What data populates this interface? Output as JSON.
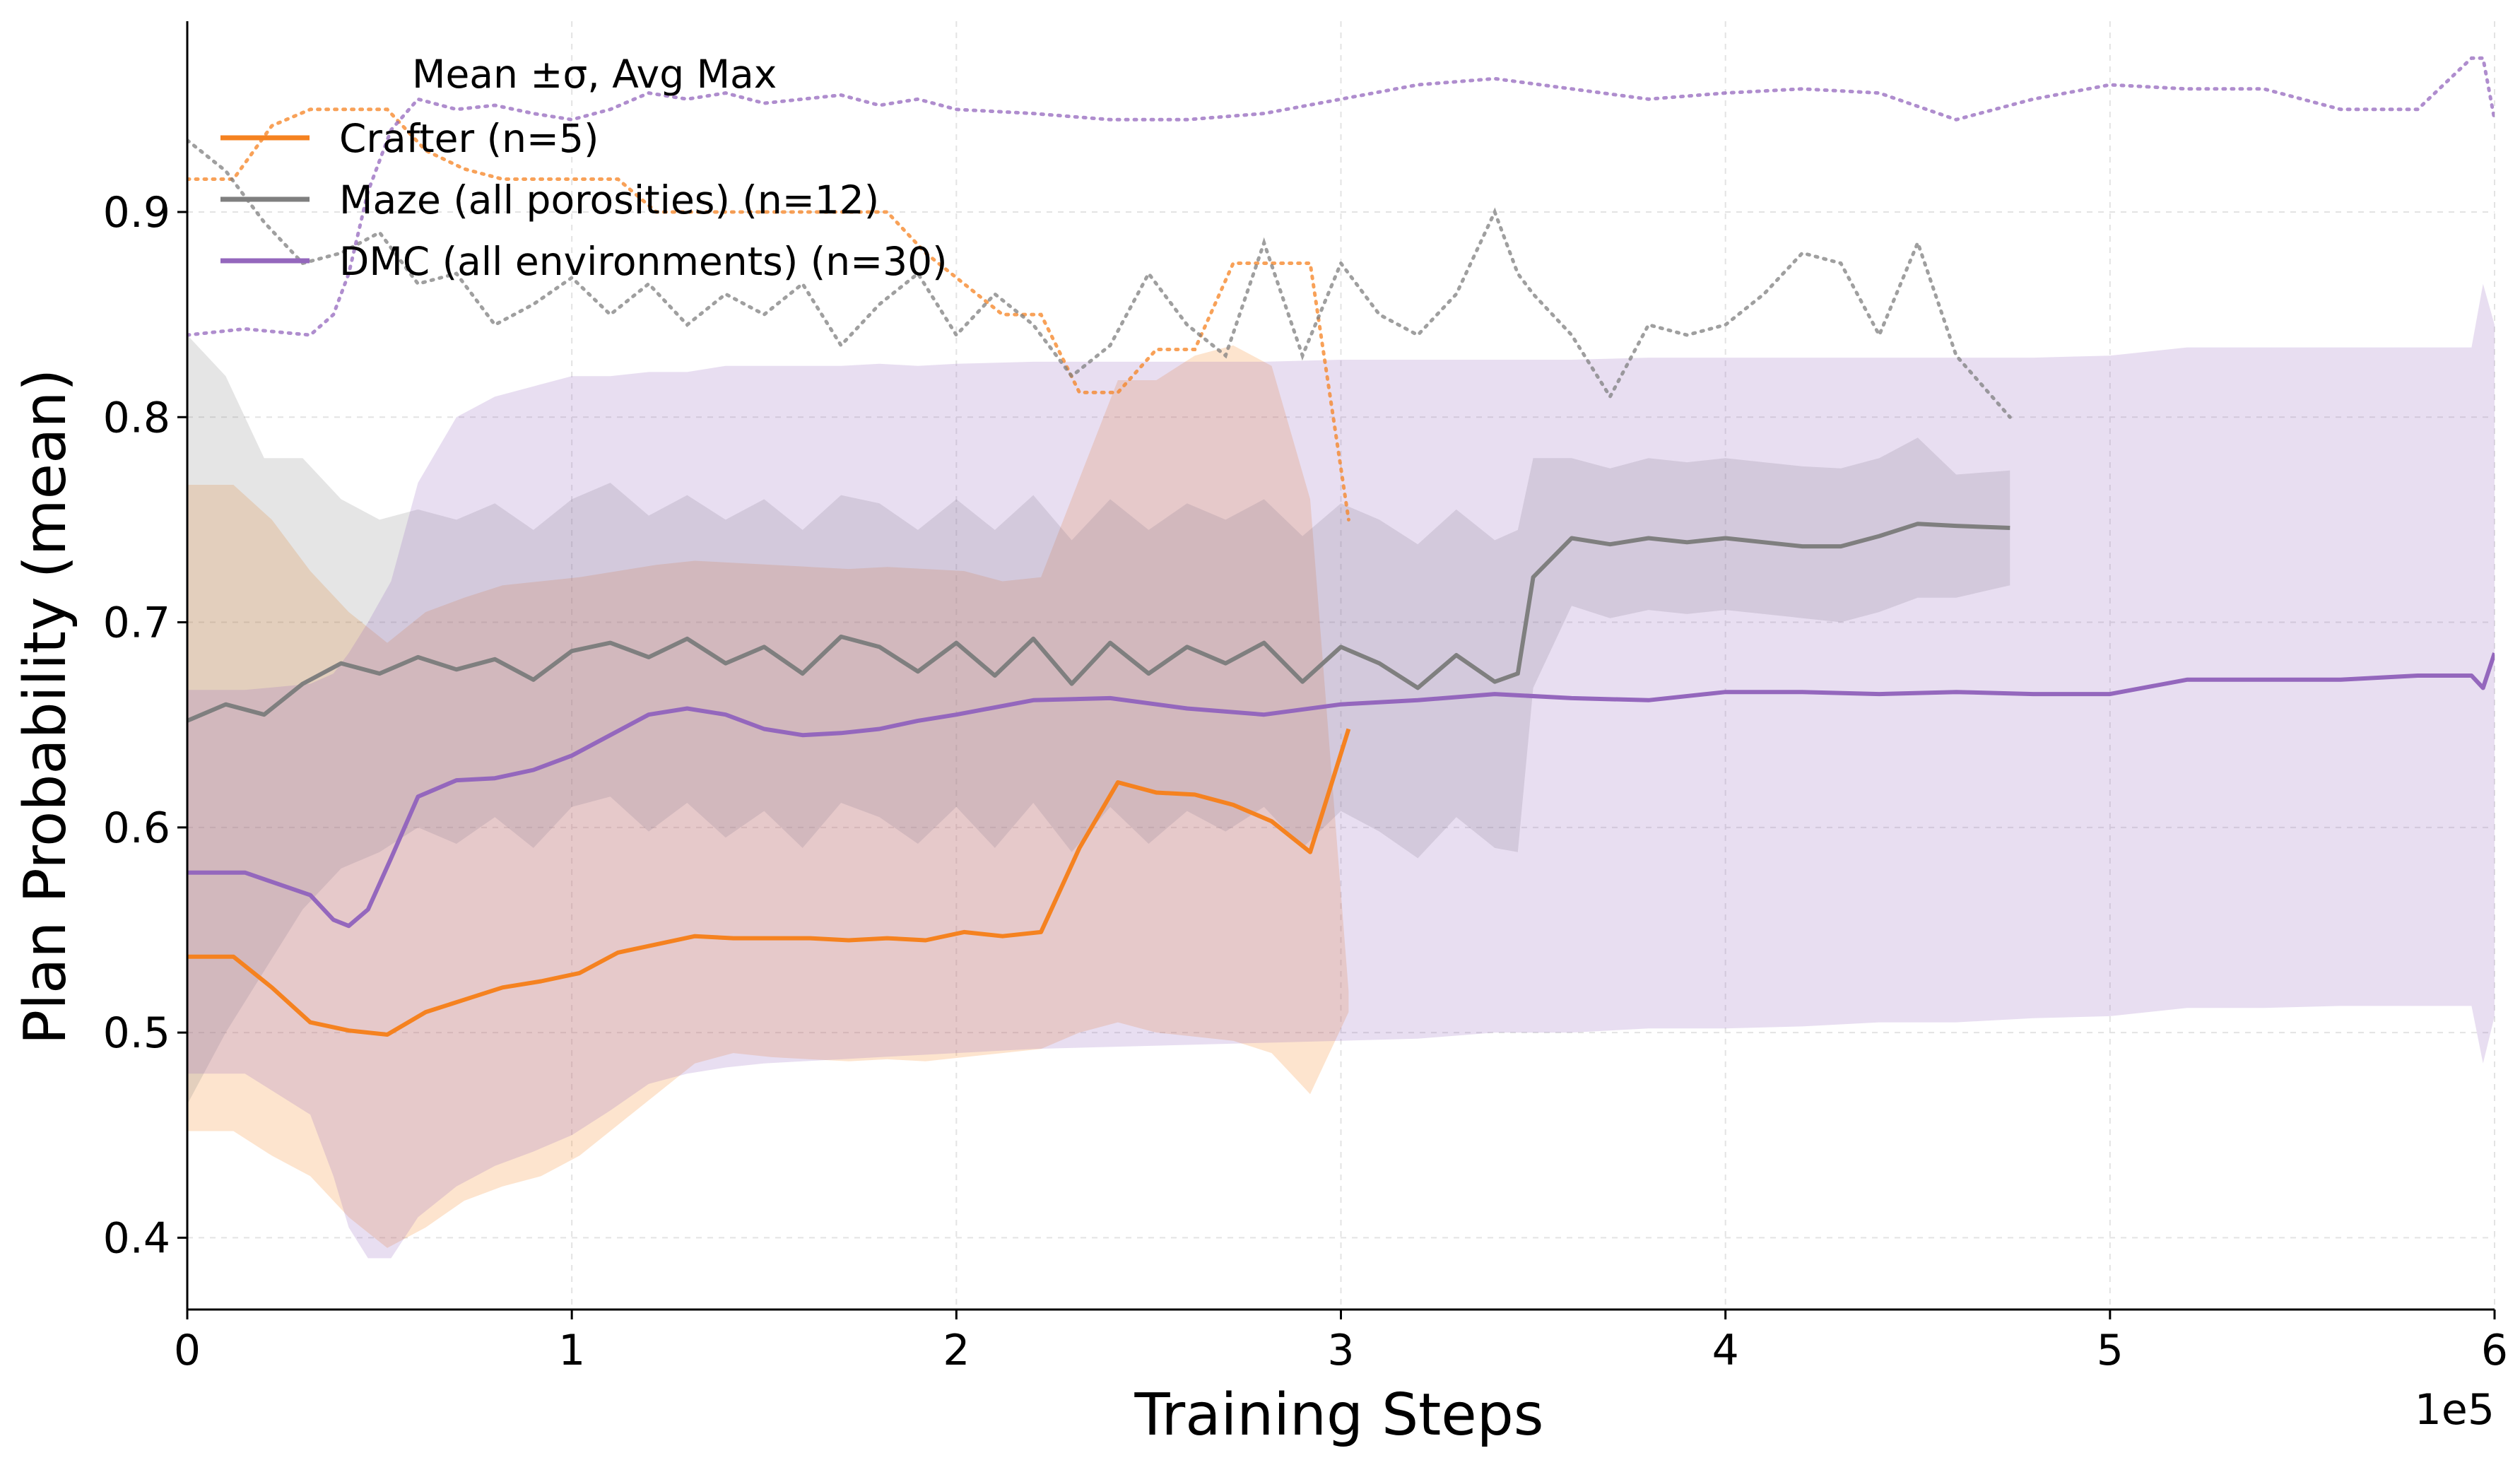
{
  "chart_data": {
    "type": "line",
    "title": "",
    "xlabel": "Training Steps",
    "ylabel": "Plan Probability (mean)",
    "x_offset_label": "1e5",
    "xlim": [
      0,
      6
    ],
    "ylim": [
      0.365,
      0.993
    ],
    "x_ticks": [
      0,
      1,
      2,
      3,
      4,
      5,
      6
    ],
    "x_tick_labels": [
      "0",
      "1",
      "2",
      "3",
      "4",
      "5",
      "6"
    ],
    "y_ticks": [
      0.4,
      0.5,
      0.6,
      0.7,
      0.8,
      0.9
    ],
    "y_tick_labels": [
      "0.4",
      "0.5",
      "0.6",
      "0.7",
      "0.8",
      "0.9"
    ],
    "grid": true,
    "legend": {
      "title": "Mean ±σ, Avg Max",
      "placement": "top-left",
      "entries": [
        "Crafter (n=5)",
        "Maze (all porosities) (n=12)",
        "DMC (all environments) (n=30)"
      ]
    },
    "series": [
      {
        "name": "Crafter (n=5)",
        "color": "#f58220",
        "x": [
          0,
          0.12,
          0.22,
          0.32,
          0.42,
          0.52,
          0.62,
          0.72,
          0.82,
          0.92,
          1.02,
          1.12,
          1.22,
          1.32,
          1.42,
          1.52,
          1.62,
          1.72,
          1.82,
          1.92,
          2.02,
          2.12,
          2.22,
          2.32,
          2.42,
          2.52,
          2.62,
          2.72,
          2.82,
          2.92,
          3.02
        ],
        "mean": [
          0.537,
          0.537,
          0.522,
          0.505,
          0.501,
          0.499,
          0.51,
          0.516,
          0.522,
          0.525,
          0.529,
          0.539,
          0.543,
          0.547,
          0.546,
          0.546,
          0.546,
          0.545,
          0.546,
          0.545,
          0.549,
          0.547,
          0.549,
          0.59,
          0.622,
          0.617,
          0.616,
          0.611,
          0.603,
          0.588,
          0.648
        ],
        "upper": [
          0.767,
          0.767,
          0.75,
          0.725,
          0.705,
          0.69,
          0.705,
          0.712,
          0.718,
          0.72,
          0.722,
          0.725,
          0.728,
          0.73,
          0.729,
          0.728,
          0.727,
          0.726,
          0.727,
          0.726,
          0.725,
          0.72,
          0.722,
          0.77,
          0.818,
          0.818,
          0.83,
          0.835,
          0.825,
          0.76,
          0.52
        ],
        "lower": [
          0.452,
          0.452,
          0.44,
          0.43,
          0.41,
          0.395,
          0.405,
          0.418,
          0.425,
          0.43,
          0.44,
          0.455,
          0.47,
          0.485,
          0.49,
          0.488,
          0.487,
          0.486,
          0.487,
          0.486,
          0.488,
          0.49,
          0.492,
          0.5,
          0.505,
          0.5,
          0.498,
          0.496,
          0.49,
          0.47,
          0.51
        ],
        "avg_max": [
          0.916,
          0.916,
          0.942,
          0.95,
          0.95,
          0.95,
          0.93,
          0.921,
          0.916,
          0.916,
          0.916,
          0.916,
          0.9,
          0.9,
          0.9,
          0.9,
          0.9,
          0.9,
          0.9,
          0.88,
          0.865,
          0.85,
          0.85,
          0.812,
          0.812,
          0.833,
          0.833,
          0.875,
          0.875,
          0.875,
          0.75
        ]
      },
      {
        "name": "Maze (all porosities) (n=12)",
        "color": "#7f7f7f",
        "x": [
          0,
          0.1,
          0.2,
          0.3,
          0.4,
          0.5,
          0.6,
          0.7,
          0.8,
          0.9,
          1.0,
          1.1,
          1.2,
          1.3,
          1.4,
          1.5,
          1.6,
          1.7,
          1.8,
          1.9,
          2.0,
          2.1,
          2.2,
          2.3,
          2.4,
          2.5,
          2.6,
          2.7,
          2.8,
          2.9,
          3.0,
          3.1,
          3.2,
          3.3,
          3.4,
          3.46,
          3.5,
          3.6,
          3.7,
          3.8,
          3.9,
          4.0,
          4.1,
          4.2,
          4.3,
          4.4,
          4.5,
          4.6,
          4.74
        ],
        "mean": [
          0.652,
          0.66,
          0.655,
          0.67,
          0.68,
          0.675,
          0.683,
          0.677,
          0.682,
          0.672,
          0.686,
          0.69,
          0.683,
          0.692,
          0.68,
          0.688,
          0.675,
          0.693,
          0.688,
          0.676,
          0.69,
          0.674,
          0.692,
          0.67,
          0.69,
          0.675,
          0.688,
          0.68,
          0.69,
          0.671,
          0.688,
          0.68,
          0.668,
          0.684,
          0.671,
          0.675,
          0.722,
          0.741,
          0.738,
          0.741,
          0.739,
          0.741,
          0.739,
          0.737,
          0.737,
          0.742,
          0.748,
          0.747,
          0.746
        ],
        "upper": [
          0.84,
          0.82,
          0.78,
          0.78,
          0.76,
          0.75,
          0.755,
          0.75,
          0.758,
          0.745,
          0.76,
          0.768,
          0.752,
          0.762,
          0.75,
          0.76,
          0.745,
          0.762,
          0.758,
          0.745,
          0.76,
          0.745,
          0.762,
          0.74,
          0.76,
          0.745,
          0.758,
          0.75,
          0.76,
          0.742,
          0.758,
          0.75,
          0.738,
          0.755,
          0.74,
          0.745,
          0.78,
          0.78,
          0.775,
          0.78,
          0.778,
          0.78,
          0.778,
          0.776,
          0.775,
          0.78,
          0.79,
          0.772,
          0.774
        ],
        "lower": [
          0.465,
          0.5,
          0.53,
          0.56,
          0.58,
          0.588,
          0.6,
          0.592,
          0.605,
          0.59,
          0.61,
          0.615,
          0.598,
          0.612,
          0.595,
          0.608,
          0.59,
          0.612,
          0.605,
          0.592,
          0.61,
          0.59,
          0.612,
          0.588,
          0.61,
          0.592,
          0.608,
          0.598,
          0.61,
          0.59,
          0.608,
          0.598,
          0.585,
          0.605,
          0.59,
          0.588,
          0.668,
          0.708,
          0.702,
          0.706,
          0.704,
          0.706,
          0.704,
          0.702,
          0.7,
          0.705,
          0.712,
          0.712,
          0.718
        ],
        "avg_max": [
          0.935,
          0.92,
          0.895,
          0.875,
          0.88,
          0.89,
          0.865,
          0.87,
          0.845,
          0.855,
          0.868,
          0.85,
          0.865,
          0.845,
          0.86,
          0.85,
          0.865,
          0.835,
          0.855,
          0.87,
          0.84,
          0.86,
          0.845,
          0.82,
          0.835,
          0.87,
          0.845,
          0.83,
          0.885,
          0.83,
          0.875,
          0.85,
          0.84,
          0.86,
          0.9,
          0.87,
          0.86,
          0.84,
          0.81,
          0.845,
          0.84,
          0.845,
          0.86,
          0.88,
          0.875,
          0.84,
          0.885,
          0.83,
          0.8
        ]
      },
      {
        "name": "DMC (all environments) (n=30)",
        "color": "#9467bd",
        "x": [
          0,
          0.15,
          0.32,
          0.38,
          0.42,
          0.47,
          0.53,
          0.6,
          0.7,
          0.8,
          0.9,
          1.0,
          1.1,
          1.2,
          1.3,
          1.4,
          1.5,
          1.6,
          1.7,
          1.8,
          1.9,
          2.0,
          2.2,
          2.4,
          2.6,
          2.8,
          3.0,
          3.2,
          3.4,
          3.6,
          3.8,
          4.0,
          4.2,
          4.4,
          4.6,
          4.8,
          5.0,
          5.2,
          5.4,
          5.6,
          5.8,
          5.94,
          5.97,
          6.0
        ],
        "mean": [
          0.578,
          0.578,
          0.567,
          0.555,
          0.552,
          0.56,
          0.585,
          0.615,
          0.623,
          0.624,
          0.628,
          0.635,
          0.645,
          0.655,
          0.658,
          0.655,
          0.648,
          0.645,
          0.646,
          0.648,
          0.652,
          0.655,
          0.662,
          0.663,
          0.658,
          0.655,
          0.66,
          0.662,
          0.665,
          0.663,
          0.662,
          0.666,
          0.666,
          0.665,
          0.666,
          0.665,
          0.665,
          0.672,
          0.672,
          0.672,
          0.674,
          0.674,
          0.668,
          0.685
        ],
        "upper": [
          0.667,
          0.667,
          0.67,
          0.675,
          0.685,
          0.7,
          0.72,
          0.768,
          0.8,
          0.81,
          0.815,
          0.82,
          0.82,
          0.822,
          0.822,
          0.825,
          0.825,
          0.825,
          0.825,
          0.826,
          0.825,
          0.826,
          0.827,
          0.827,
          0.827,
          0.827,
          0.828,
          0.828,
          0.828,
          0.828,
          0.829,
          0.829,
          0.829,
          0.829,
          0.829,
          0.829,
          0.83,
          0.834,
          0.834,
          0.834,
          0.834,
          0.834,
          0.865,
          0.845
        ],
        "lower": [
          0.48,
          0.48,
          0.46,
          0.43,
          0.405,
          0.39,
          0.39,
          0.41,
          0.425,
          0.435,
          0.442,
          0.45,
          0.462,
          0.475,
          0.48,
          0.483,
          0.485,
          0.486,
          0.487,
          0.488,
          0.489,
          0.49,
          0.492,
          0.493,
          0.494,
          0.495,
          0.496,
          0.497,
          0.5,
          0.5,
          0.502,
          0.502,
          0.503,
          0.505,
          0.505,
          0.507,
          0.508,
          0.512,
          0.512,
          0.513,
          0.513,
          0.513,
          0.485,
          0.508
        ],
        "avg_max": [
          0.84,
          0.843,
          0.84,
          0.85,
          0.87,
          0.91,
          0.94,
          0.955,
          0.95,
          0.952,
          0.948,
          0.945,
          0.95,
          0.958,
          0.955,
          0.958,
          0.953,
          0.955,
          0.957,
          0.952,
          0.955,
          0.95,
          0.948,
          0.945,
          0.945,
          0.948,
          0.955,
          0.962,
          0.965,
          0.96,
          0.955,
          0.958,
          0.96,
          0.958,
          0.945,
          0.955,
          0.962,
          0.96,
          0.96,
          0.95,
          0.95,
          0.975,
          0.975,
          0.945
        ]
      }
    ]
  }
}
